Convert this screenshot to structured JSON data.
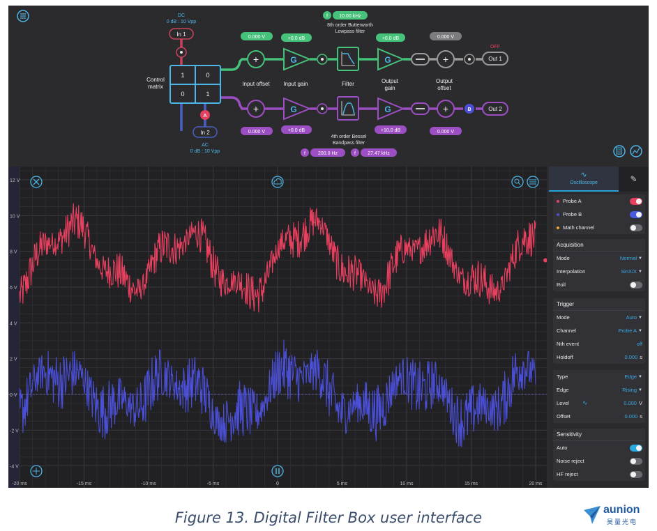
{
  "diagram": {
    "dc_label": "DC",
    "dc_range": "0 dB : 10 Vpp",
    "in1": "In 1",
    "in2": "In 2",
    "ac_label": "AC",
    "ac_range": "0 dB : 10 Vpp",
    "control_matrix": [
      "Control",
      "matrix"
    ],
    "matrix_cells": [
      "1",
      "0",
      "0",
      "1"
    ],
    "probe_a": "A",
    "probe_b": "B",
    "top_chain": {
      "input_offset_value": "0.000 V",
      "input_gain_value": "+0.0 dB",
      "gain_symbol": "G",
      "filter_freq_symbol": "f",
      "filter_freq_value": "10.00 kHz",
      "filter_desc_1": "8th order Butterworth",
      "filter_desc_2": "Lowpass filter",
      "output_gain_value": "+0.0 dB",
      "output_offset_value": "0.000 V",
      "off_label": "OFF",
      "out": "Out 1"
    },
    "bottom_chain": {
      "input_offset_value": "0.000 V",
      "input_gain_value": "+0.0 dB",
      "gain_symbol": "G",
      "filter_desc_1": "4th order Bessel",
      "filter_desc_2": "Bandpass filter",
      "f1_symbol": "f",
      "f1_value": "200.0 Hz",
      "f2_symbol": "f",
      "f2_value": "27.47 kHz",
      "output_gain_value": "+10.0 dB",
      "output_offset_value": "0.000 V",
      "out": "Out 2"
    },
    "labels": {
      "input_offset": "Input offset",
      "input_gain": "Input gain",
      "filter": "Filter",
      "output_gain": [
        "Output",
        "gain"
      ],
      "output_offset": [
        "Output",
        "offset"
      ]
    },
    "icons": [
      "menu-icon",
      "plus-icon",
      "gain-triangle-icon",
      "lowpass-icon",
      "bandpass-icon",
      "minus-icon",
      "export-icon",
      "chart-icon"
    ]
  },
  "scope": {
    "y_ticks": [
      "12 V",
      "10 V",
      "8 V",
      "6 V",
      "4 V",
      "2 V",
      "0 V",
      "-2 V",
      "-4 V"
    ],
    "x_ticks": [
      "-20 ms",
      "-15 ms",
      "-10 ms",
      "-5 ms",
      "0",
      "5 ms",
      "10 ms",
      "15 ms",
      "20 ms"
    ],
    "icons": [
      "close-icon",
      "cloud-icon",
      "zoom-icon",
      "settings-icon",
      "crosshair-icon",
      "pause-icon"
    ],
    "colors": {
      "probe_a": "#e8405f",
      "probe_b": "#4a4fd6",
      "grid": "#333338"
    }
  },
  "chart_data": {
    "type": "line",
    "xlim": [
      -20,
      20
    ],
    "ylim": [
      -5,
      12
    ],
    "x_unit": "ms",
    "y_unit": "V",
    "series": [
      {
        "name": "Probe A",
        "center": 7.5,
        "amplitude": 1.6,
        "noise": 1.1,
        "color": "#e8405f"
      },
      {
        "name": "Probe B",
        "center": 0.0,
        "amplitude": 1.1,
        "noise": 1.6,
        "color": "#4a4fd6"
      }
    ]
  },
  "panel": {
    "tab_label": "Oscilloscope",
    "channels": [
      {
        "name": "Probe A",
        "color": "#e8405f",
        "on": true,
        "toggle_color": "#e8405f"
      },
      {
        "name": "Probe B",
        "color": "#4a4fd6",
        "on": true,
        "toggle_color": "#4a5ae0"
      },
      {
        "name": "Math channel",
        "color": "#f0a030",
        "on": false,
        "toggle_color": "#6a6a70"
      }
    ],
    "acquisition": {
      "title": "Acquisition",
      "mode_label": "Mode",
      "mode_value": "Normal",
      "interp_label": "Interpolation",
      "interp_value": "SinX/X",
      "roll_label": "Roll"
    },
    "trigger": {
      "title": "Trigger",
      "mode_label": "Mode",
      "mode_value": "Auto",
      "channel_label": "Channel",
      "channel_value": "Probe A",
      "nth_label": "Nth event",
      "nth_value": "off",
      "holdoff_label": "Holdoff",
      "holdoff_value": "0.000",
      "holdoff_unit": "s"
    },
    "edge": {
      "type_label": "Type",
      "type_value": "Edge",
      "edge_label": "Edge",
      "edge_value": "Rising",
      "level_label": "Level",
      "level_value": "0.000",
      "level_unit": "V",
      "offset_label": "Offset",
      "offset_value": "0.000",
      "offset_unit": "s"
    },
    "sensitivity": {
      "title": "Sensitivity",
      "auto_label": "Auto",
      "noise_label": "Noise reject",
      "hf_label": "HF reject"
    }
  },
  "caption": "Figure 13. Digital Filter Box user interface",
  "logo": {
    "word": "aunion",
    "cn": "昊量光电"
  }
}
